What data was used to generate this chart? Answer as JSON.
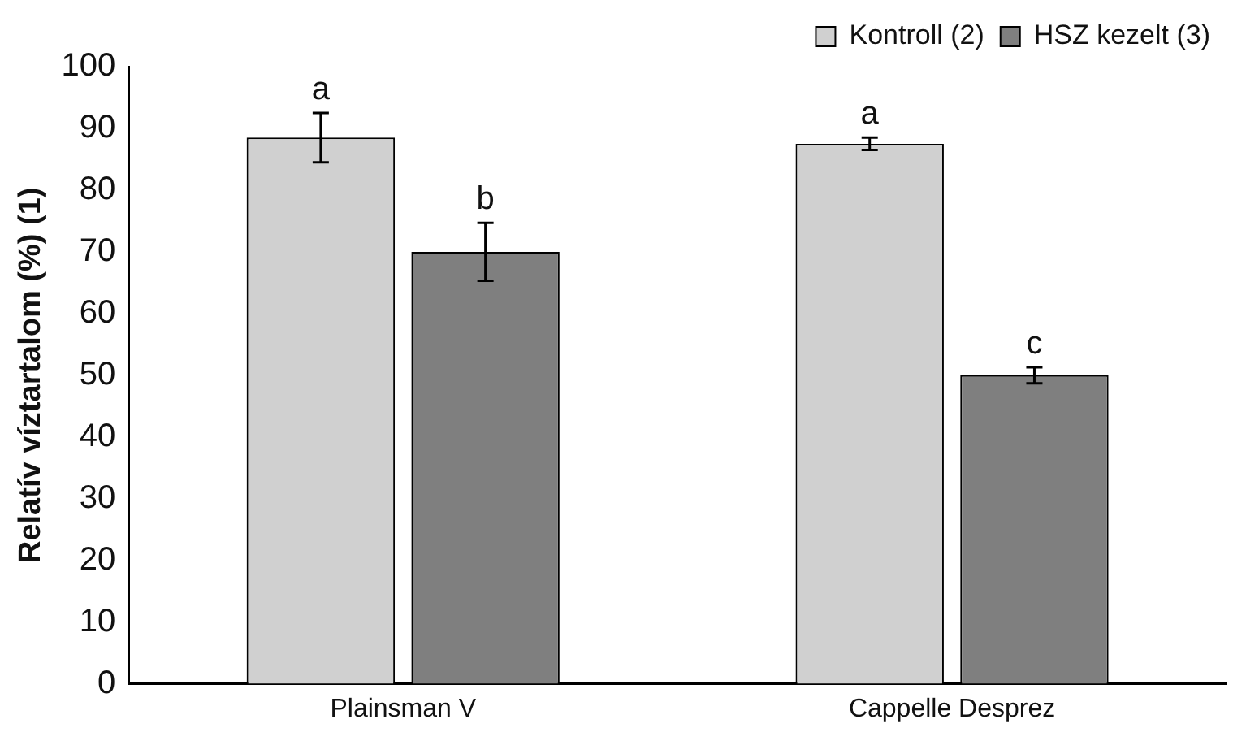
{
  "chart_data": {
    "type": "bar",
    "ylabel": "Relatív víztartalom (%) (1)",
    "categories": [
      "Plainsman V",
      "Cappelle Desprez"
    ],
    "series": [
      {
        "name": "Kontroll (2)",
        "color": "#d0d0d0",
        "values": [
          88.5,
          87.5
        ],
        "errors": [
          4,
          1
        ],
        "value_labels": [
          "a",
          "a"
        ]
      },
      {
        "name": "HSZ kezelt (3)",
        "color": "#7f7f7f",
        "values": [
          70,
          50
        ],
        "errors": [
          4.7,
          1.3
        ],
        "value_labels": [
          "b",
          "c"
        ]
      }
    ],
    "ylim": [
      0,
      100
    ],
    "yticks": [
      0,
      10,
      20,
      30,
      40,
      50,
      60,
      70,
      80,
      90,
      100
    ],
    "grid": false,
    "legend": "top right"
  }
}
